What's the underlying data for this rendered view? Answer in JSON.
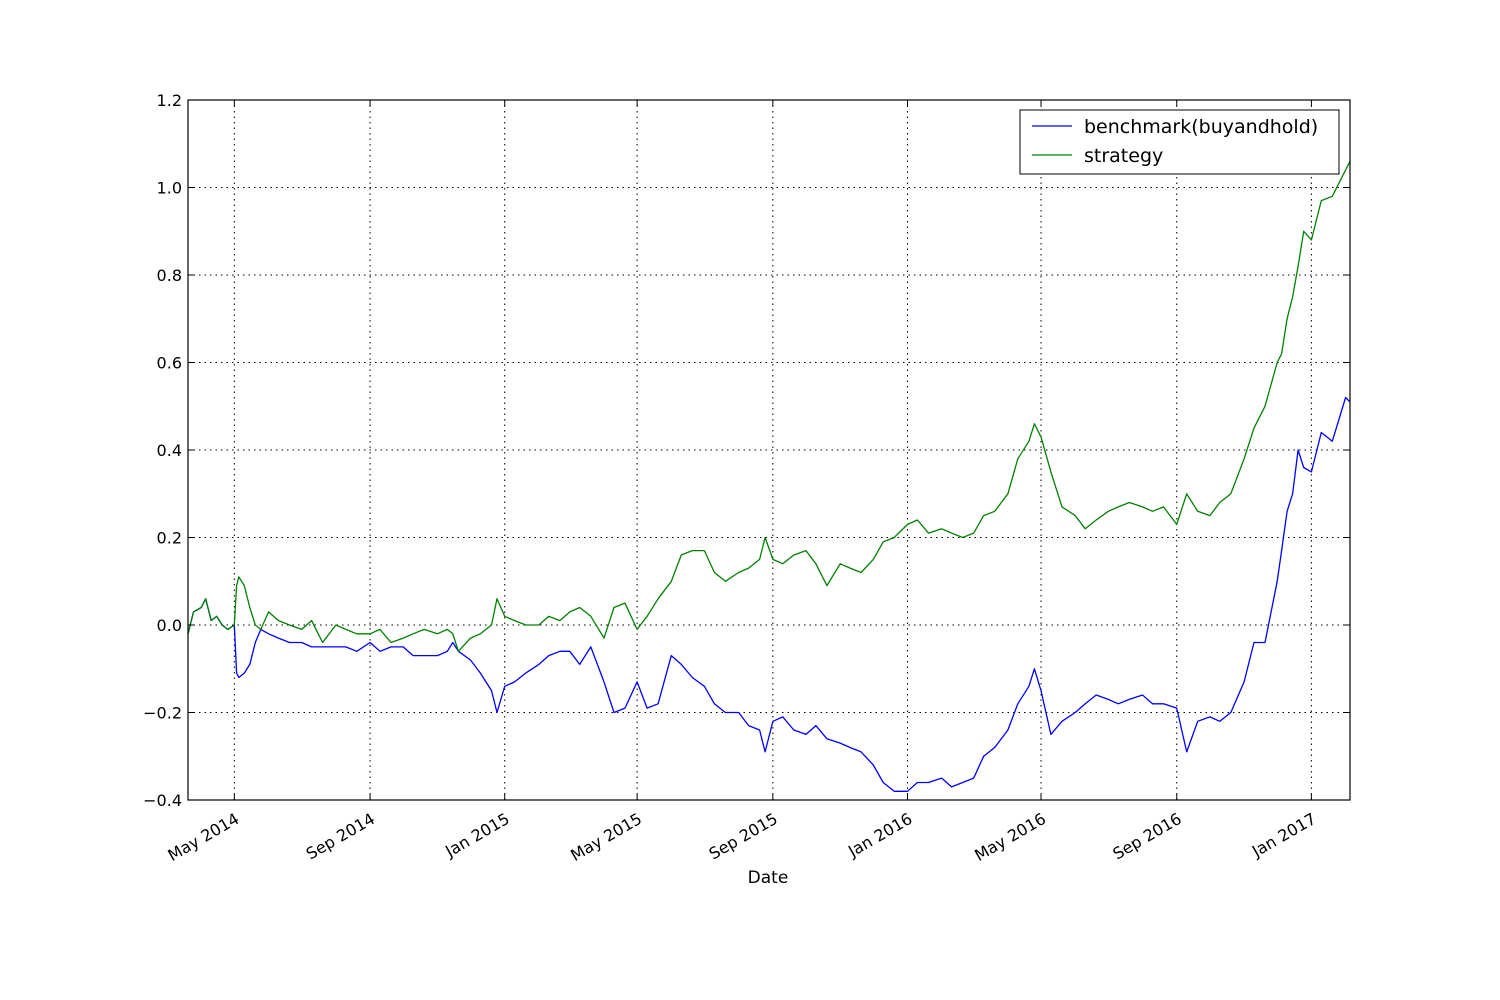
{
  "chart_data": {
    "type": "line",
    "title": "",
    "xlabel": "Date",
    "ylabel": "",
    "x_axis_type": "date",
    "xlim": [
      "2014-03-20",
      "2017-02-05"
    ],
    "ylim": [
      -0.4,
      1.2
    ],
    "grid": true,
    "legend_position": "top-right",
    "x_ticks": [
      {
        "date": "2014-05-01",
        "label": "May 2014"
      },
      {
        "date": "2014-09-01",
        "label": "Sep 2014"
      },
      {
        "date": "2015-01-01",
        "label": "Jan 2015"
      },
      {
        "date": "2015-05-01",
        "label": "May 2015"
      },
      {
        "date": "2015-09-01",
        "label": "Sep 2015"
      },
      {
        "date": "2016-01-01",
        "label": "Jan 2016"
      },
      {
        "date": "2016-05-01",
        "label": "May 2016"
      },
      {
        "date": "2016-09-01",
        "label": "Sep 2016"
      },
      {
        "date": "2017-01-01",
        "label": "Jan 2017"
      }
    ],
    "y_ticks": [
      {
        "value": 1.2,
        "label": "1.2"
      },
      {
        "value": 1.0,
        "label": "1.0"
      },
      {
        "value": 0.8,
        "label": "0.8"
      },
      {
        "value": 0.6,
        "label": "0.6"
      },
      {
        "value": 0.4,
        "label": "0.4"
      },
      {
        "value": 0.2,
        "label": "0.2"
      },
      {
        "value": 0.0,
        "label": "0.0"
      },
      {
        "value": -0.2,
        "label": "−0.2"
      },
      {
        "value": -0.4,
        "label": "−0.4"
      }
    ],
    "x": [
      "2014-03-20",
      "2014-03-25",
      "2014-04-01",
      "2014-04-05",
      "2014-04-10",
      "2014-04-15",
      "2014-04-20",
      "2014-04-25",
      "2014-05-01",
      "2014-05-03",
      "2014-05-05",
      "2014-05-10",
      "2014-05-15",
      "2014-05-20",
      "2014-05-25",
      "2014-06-01",
      "2014-06-10",
      "2014-06-20",
      "2014-07-01",
      "2014-07-10",
      "2014-07-20",
      "2014-08-01",
      "2014-08-10",
      "2014-08-20",
      "2014-09-01",
      "2014-09-10",
      "2014-09-20",
      "2014-10-01",
      "2014-10-10",
      "2014-10-20",
      "2014-11-01",
      "2014-11-10",
      "2014-11-15",
      "2014-11-20",
      "2014-12-01",
      "2014-12-10",
      "2014-12-20",
      "2014-12-25",
      "2015-01-01",
      "2015-01-10",
      "2015-01-20",
      "2015-02-01",
      "2015-02-10",
      "2015-02-20",
      "2015-03-01",
      "2015-03-10",
      "2015-03-20",
      "2015-04-01",
      "2015-04-10",
      "2015-04-20",
      "2015-05-01",
      "2015-05-10",
      "2015-05-20",
      "2015-06-01",
      "2015-06-10",
      "2015-06-20",
      "2015-07-01",
      "2015-07-10",
      "2015-07-20",
      "2015-08-01",
      "2015-08-10",
      "2015-08-20",
      "2015-08-25",
      "2015-09-01",
      "2015-09-10",
      "2015-09-20",
      "2015-10-01",
      "2015-10-10",
      "2015-10-20",
      "2015-11-01",
      "2015-11-10",
      "2015-11-20",
      "2015-12-01",
      "2015-12-10",
      "2015-12-20",
      "2016-01-01",
      "2016-01-10",
      "2016-01-20",
      "2016-02-01",
      "2016-02-10",
      "2016-02-20",
      "2016-03-01",
      "2016-03-10",
      "2016-03-20",
      "2016-04-01",
      "2016-04-10",
      "2016-04-20",
      "2016-04-25",
      "2016-05-01",
      "2016-05-10",
      "2016-05-20",
      "2016-06-01",
      "2016-06-10",
      "2016-06-20",
      "2016-07-01",
      "2016-07-10",
      "2016-07-20",
      "2016-08-01",
      "2016-08-10",
      "2016-08-20",
      "2016-09-01",
      "2016-09-10",
      "2016-09-20",
      "2016-10-01",
      "2016-10-10",
      "2016-10-20",
      "2016-11-01",
      "2016-11-10",
      "2016-11-20",
      "2016-12-01",
      "2016-12-05",
      "2016-12-10",
      "2016-12-15",
      "2016-12-20",
      "2016-12-25",
      "2017-01-01",
      "2017-01-10",
      "2017-01-20",
      "2017-02-01",
      "2017-02-05"
    ],
    "series": [
      {
        "name": "benchmark(buyandhold)",
        "color": "#0000ff",
        "values": [
          -0.02,
          0.03,
          0.04,
          0.06,
          0.01,
          0.02,
          0.0,
          -0.01,
          0.0,
          -0.11,
          -0.12,
          -0.11,
          -0.09,
          -0.04,
          -0.01,
          -0.02,
          -0.03,
          -0.04,
          -0.04,
          -0.05,
          -0.05,
          -0.05,
          -0.05,
          -0.06,
          -0.04,
          -0.06,
          -0.05,
          -0.05,
          -0.07,
          -0.07,
          -0.07,
          -0.06,
          -0.04,
          -0.06,
          -0.08,
          -0.11,
          -0.15,
          -0.2,
          -0.14,
          -0.13,
          -0.11,
          -0.09,
          -0.07,
          -0.06,
          -0.06,
          -0.09,
          -0.05,
          -0.13,
          -0.2,
          -0.19,
          -0.13,
          -0.19,
          -0.18,
          -0.07,
          -0.09,
          -0.12,
          -0.14,
          -0.18,
          -0.2,
          -0.2,
          -0.23,
          -0.24,
          -0.29,
          -0.22,
          -0.21,
          -0.24,
          -0.25,
          -0.23,
          -0.26,
          -0.27,
          -0.28,
          -0.29,
          -0.32,
          -0.36,
          -0.38,
          -0.38,
          -0.36,
          -0.36,
          -0.35,
          -0.37,
          -0.36,
          -0.35,
          -0.3,
          -0.28,
          -0.24,
          -0.18,
          -0.14,
          -0.1,
          -0.15,
          -0.25,
          -0.22,
          -0.2,
          -0.18,
          -0.16,
          -0.17,
          -0.18,
          -0.17,
          -0.16,
          -0.18,
          -0.18,
          -0.19,
          -0.29,
          -0.22,
          -0.21,
          -0.22,
          -0.2,
          -0.13,
          -0.04,
          -0.04,
          0.1,
          0.17,
          0.26,
          0.3,
          0.4,
          0.36,
          0.35,
          0.44,
          0.42,
          0.52,
          0.51
        ]
      },
      {
        "name": "strategy",
        "color": "#008000",
        "values": [
          -0.02,
          0.03,
          0.04,
          0.06,
          0.01,
          0.02,
          0.0,
          -0.01,
          0.0,
          0.09,
          0.11,
          0.09,
          0.04,
          0.0,
          -0.01,
          0.03,
          0.01,
          0.0,
          -0.01,
          0.01,
          -0.04,
          0.0,
          -0.01,
          -0.02,
          -0.02,
          -0.01,
          -0.04,
          -0.03,
          -0.02,
          -0.01,
          -0.02,
          -0.01,
          -0.02,
          -0.06,
          -0.03,
          -0.02,
          0.0,
          0.06,
          0.02,
          0.01,
          0.0,
          0.0,
          0.02,
          0.01,
          0.03,
          0.04,
          0.02,
          -0.03,
          0.04,
          0.05,
          -0.01,
          0.02,
          0.06,
          0.1,
          0.16,
          0.17,
          0.17,
          0.12,
          0.1,
          0.12,
          0.13,
          0.15,
          0.2,
          0.15,
          0.14,
          0.16,
          0.17,
          0.14,
          0.09,
          0.14,
          0.13,
          0.12,
          0.15,
          0.19,
          0.2,
          0.23,
          0.24,
          0.21,
          0.22,
          0.21,
          0.2,
          0.21,
          0.25,
          0.26,
          0.3,
          0.38,
          0.42,
          0.46,
          0.43,
          0.35,
          0.27,
          0.25,
          0.22,
          0.24,
          0.26,
          0.27,
          0.28,
          0.27,
          0.26,
          0.27,
          0.23,
          0.3,
          0.26,
          0.25,
          0.28,
          0.3,
          0.38,
          0.45,
          0.5,
          0.6,
          0.62,
          0.7,
          0.75,
          0.82,
          0.9,
          0.88,
          0.97,
          0.98,
          1.04,
          1.06
        ]
      }
    ]
  }
}
